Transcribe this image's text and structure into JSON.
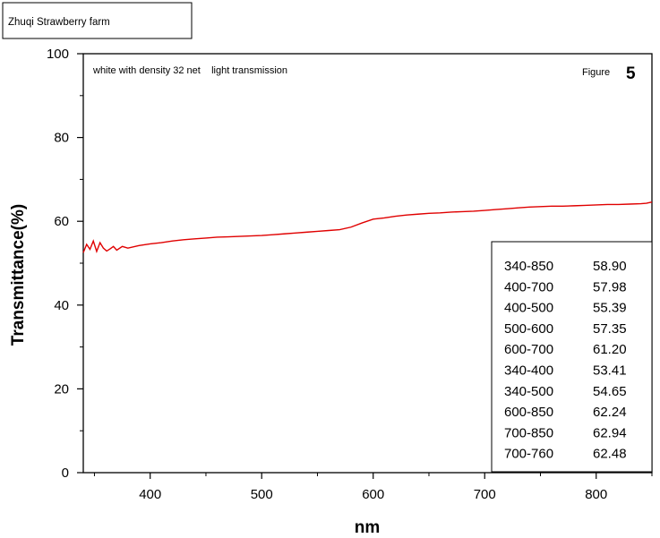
{
  "header_box": {
    "text": "Zhuqi Strawberry farm"
  },
  "figure_label": {
    "prefix": "Figure",
    "number": "5"
  },
  "chart_data": {
    "type": "line",
    "title": "",
    "annotation": "white with density 32 net    light transmission",
    "xlabel": "nm",
    "ylabel": "Transmittance(%)",
    "xlim": [
      340,
      850
    ],
    "ylim": [
      0,
      100
    ],
    "x_ticks": [
      400,
      500,
      600,
      700,
      800
    ],
    "y_ticks": [
      0,
      20,
      40,
      60,
      80,
      100
    ],
    "grid": false,
    "series_color": "#e00000",
    "series": [
      {
        "x": [
          340,
          343,
          346,
          349,
          352,
          355,
          358,
          361,
          364,
          367,
          370,
          375,
          380,
          390,
          400,
          410,
          420,
          430,
          440,
          450,
          460,
          470,
          480,
          490,
          500,
          510,
          520,
          530,
          540,
          550,
          560,
          570,
          580,
          590,
          600,
          610,
          620,
          630,
          640,
          650,
          660,
          670,
          680,
          690,
          700,
          710,
          720,
          730,
          740,
          750,
          760,
          770,
          780,
          790,
          800,
          810,
          820,
          830,
          840,
          845,
          850
        ],
        "y": [
          52.5,
          54.5,
          53.3,
          55.3,
          52.8,
          54.9,
          53.6,
          52.9,
          53.4,
          54.0,
          53.1,
          54.0,
          53.6,
          54.2,
          54.6,
          54.9,
          55.3,
          55.6,
          55.8,
          56.0,
          56.2,
          56.3,
          56.4,
          56.5,
          56.6,
          56.8,
          57.0,
          57.2,
          57.4,
          57.6,
          57.8,
          58.0,
          58.6,
          59.6,
          60.5,
          60.8,
          61.2,
          61.5,
          61.7,
          61.9,
          62.0,
          62.2,
          62.3,
          62.4,
          62.6,
          62.8,
          63.0,
          63.2,
          63.4,
          63.5,
          63.6,
          63.6,
          63.7,
          63.8,
          63.9,
          64.0,
          64.0,
          64.1,
          64.2,
          64.3,
          64.6
        ]
      }
    ],
    "range_table": [
      {
        "range": "340-850",
        "value": "58.90"
      },
      {
        "range": "400-700",
        "value": "57.98"
      },
      {
        "range": "400-500",
        "value": "55.39"
      },
      {
        "range": "500-600",
        "value": "57.35"
      },
      {
        "range": "600-700",
        "value": "61.20"
      },
      {
        "range": "340-400",
        "value": "53.41"
      },
      {
        "range": "340-500",
        "value": "54.65"
      },
      {
        "range": "600-850",
        "value": "62.24"
      },
      {
        "range": "700-850",
        "value": "62.94"
      },
      {
        "range": "700-760",
        "value": "62.48"
      }
    ],
    "range_table_placement": "bottom-right"
  }
}
